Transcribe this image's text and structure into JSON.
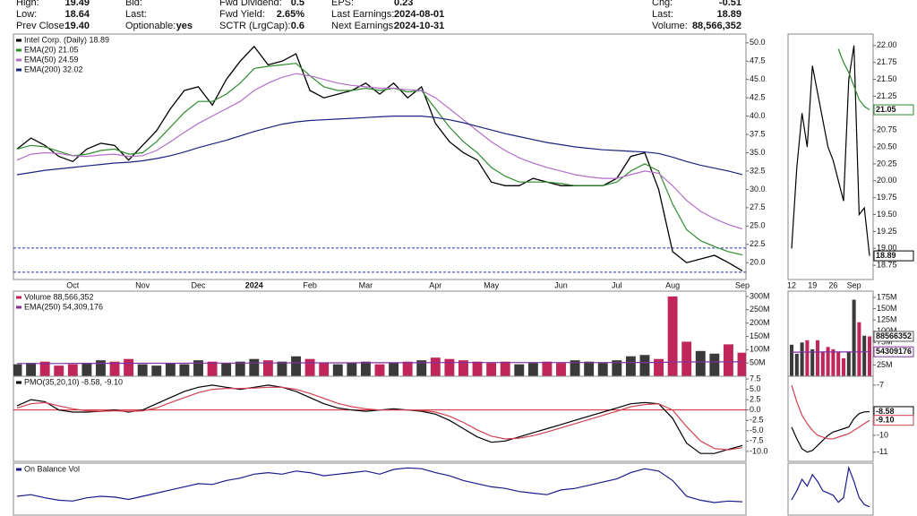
{
  "header": {
    "rows": [
      [
        {
          "label": "High:",
          "value": "19.49"
        },
        {
          "label": "Bid:"
        },
        {
          "label": "Fwd Dividend:",
          "value": "0.5"
        },
        {
          "label": "EPS:",
          "value": "0.23"
        },
        {
          "label": "Chg:",
          "value": "-0.51"
        }
      ],
      [
        {
          "label": "Low:",
          "value": "18.64"
        },
        {
          "label": "Last:"
        },
        {
          "label": "Fwd Yield:",
          "value": "2.65%"
        },
        {
          "label": "Last Earnings:",
          "value": "2024-08-01"
        },
        {
          "label": "Last:",
          "value": "18.89"
        }
      ],
      [
        {
          "label": "Prev Close:",
          "value": "19.40"
        },
        {
          "label": "Optionable:",
          "value": "yes"
        },
        {
          "label": "SCTR (LrgCap):",
          "value": "0.6"
        },
        {
          "label": "Next Earnings:",
          "value": "2024-10-31"
        },
        {
          "label": "Volume:",
          "value": "88,566,352"
        }
      ]
    ]
  },
  "chart_data": [
    {
      "type": "line",
      "categories": [
        null,
        null,
        null,
        null,
        "Oct",
        null,
        null,
        null,
        null,
        "Nov",
        null,
        null,
        null,
        "Dec",
        null,
        null,
        null,
        "2024",
        null,
        null,
        null,
        "Feb",
        null,
        null,
        null,
        "Mar",
        null,
        null,
        null,
        null,
        "Apr",
        null,
        null,
        null,
        "May",
        null,
        null,
        null,
        null,
        "Jun",
        null,
        null,
        null,
        "Jul",
        null,
        null,
        null,
        "Aug",
        null,
        null,
        null,
        null,
        "Sep"
      ],
      "ylim": [
        17.7,
        51.2
      ],
      "yticks": [
        {
          "value": 50,
          "label": "50.0"
        },
        47.5,
        {
          "value": 45,
          "label": "45.0"
        },
        42.5,
        {
          "value": 40,
          "label": "40.0"
        },
        37.5,
        {
          "value": 35,
          "label": "35.0"
        },
        32.5,
        {
          "value": 30,
          "label": "30.0"
        },
        27.5,
        {
          "value": 25,
          "label": "25.0"
        },
        22.5,
        {
          "value": 20,
          "label": "20.0"
        }
      ],
      "hlines": [
        22.0,
        18.7
      ],
      "hline_color": "#2233aa",
      "hline_dash": true,
      "series": [
        {
          "name": "Intel Corp. (Daily) 18.89",
          "color": "#000000",
          "values": [
            35.5,
            37.0,
            36.0,
            34.5,
            33.8,
            35.5,
            36.3,
            36.0,
            34.0,
            36.0,
            38.0,
            41.0,
            43.5,
            44.0,
            41.5,
            45.0,
            47.5,
            49.5,
            47.0,
            47.5,
            48.5,
            43.5,
            42.5,
            43.0,
            43.5,
            44.5,
            43.0,
            44.5,
            42.5,
            44.0,
            39.0,
            36.5,
            35.0,
            34.0,
            31.0,
            30.5,
            30.5,
            31.5,
            31.0,
            30.5,
            30.5,
            30.5,
            30.5,
            31.5,
            34.5,
            35.0,
            30.0,
            21.5,
            20.0,
            20.5,
            21.0,
            20.0,
            18.89
          ]
        },
        {
          "name": "EMA(20) 21.05",
          "color": "#2e8b2e",
          "values": [
            35.5,
            36,
            35.8,
            35.2,
            34.6,
            34.8,
            35.3,
            35.5,
            34.8,
            35,
            36.5,
            38.5,
            40.5,
            42,
            42,
            43,
            44.5,
            46.5,
            46.8,
            47,
            47.2,
            45.5,
            44,
            43.5,
            43.5,
            43.8,
            43.5,
            43.8,
            43.3,
            43.5,
            41,
            38.5,
            36.5,
            35,
            33,
            31.8,
            31,
            31,
            31,
            30.8,
            30.5,
            30.5,
            30.5,
            31,
            32.5,
            33.5,
            32.5,
            28,
            24.5,
            23,
            22.2,
            21.5,
            21.05
          ]
        },
        {
          "name": "EMA(50) 24.59",
          "color": "#b46ec8",
          "values": [
            34,
            34.8,
            35,
            34.9,
            34.6,
            34.5,
            34.7,
            34.8,
            34.5,
            34.6,
            35.3,
            36.5,
            37.8,
            39,
            40,
            41,
            42,
            43.5,
            44.5,
            45.3,
            45.8,
            45.5,
            45,
            44.5,
            44.2,
            44,
            43.8,
            43.8,
            43.6,
            43.5,
            42.5,
            41,
            39.5,
            38,
            36.5,
            35.3,
            34.3,
            33.6,
            33,
            32.5,
            32,
            31.7,
            31.5,
            31.5,
            32,
            32.5,
            32.2,
            30.5,
            28.5,
            27,
            26,
            25.2,
            24.59
          ]
        },
        {
          "name": "EMA(200) 32.02",
          "color": "#1a237e",
          "values": [
            32,
            32.3,
            32.6,
            32.8,
            33,
            33.2,
            33.4,
            33.6,
            33.7,
            33.9,
            34.2,
            34.6,
            35.1,
            35.7,
            36.2,
            36.7,
            37.3,
            37.9,
            38.4,
            38.9,
            39.2,
            39.4,
            39.5,
            39.6,
            39.7,
            39.8,
            39.9,
            40,
            40,
            40,
            39.8,
            39.5,
            39.1,
            38.6,
            38.1,
            37.6,
            37.2,
            36.8,
            36.4,
            36.1,
            35.8,
            35.6,
            35.4,
            35.3,
            35.2,
            35.1,
            34.9,
            34.4,
            33.8,
            33.3,
            32.9,
            32.5,
            32.02
          ]
        }
      ]
    },
    {
      "type": "bar",
      "ylim": [
        0,
        320000000
      ],
      "yticks": [
        {
          "value": 300000000,
          "label": "300M"
        },
        {
          "value": 250000000,
          "label": "250M"
        },
        {
          "value": 200000000,
          "label": "200M"
        },
        {
          "value": 150000000,
          "label": "150M"
        },
        {
          "value": 100000000,
          "label": "100M"
        },
        {
          "value": 50000000,
          "label": "50M"
        }
      ],
      "series": [
        {
          "name": "Volume 88,566,352",
          "kind": "bar",
          "up_color": "#3a3a3a",
          "down_color": "#c0265a",
          "values": [
            45000000,
            50000000,
            55000000,
            40000000,
            45000000,
            50000000,
            60000000,
            55000000,
            65000000,
            45000000,
            40000000,
            50000000,
            45000000,
            60000000,
            55000000,
            50000000,
            55000000,
            65000000,
            60000000,
            55000000,
            75000000,
            65000000,
            50000000,
            45000000,
            50000000,
            55000000,
            45000000,
            50000000,
            55000000,
            60000000,
            70000000,
            65000000,
            60000000,
            55000000,
            50000000,
            55000000,
            45000000,
            50000000,
            55000000,
            50000000,
            60000000,
            55000000,
            50000000,
            60000000,
            75000000,
            80000000,
            65000000,
            300000000,
            130000000,
            95000000,
            85000000,
            120000000,
            88566352
          ]
        },
        {
          "name": "EMA(250) 54,309,176",
          "color": "#8030a0",
          "values": [
            48000000,
            48000000,
            48000000,
            48000000,
            48500000,
            48500000,
            48500000,
            49000000,
            49000000,
            49000000,
            49000000,
            49000000,
            49000000,
            49500000,
            49500000,
            49500000,
            49500000,
            50000000,
            50000000,
            50000000,
            50500000,
            50500000,
            50500000,
            50500000,
            50500000,
            51000000,
            51000000,
            51000000,
            51000000,
            51000000,
            51500000,
            51500000,
            51500000,
            51500000,
            51500000,
            51500000,
            51500000,
            51500000,
            51500000,
            51500000,
            51500000,
            51500000,
            51500000,
            51500000,
            52000000,
            52000000,
            52000000,
            53500000,
            54000000,
            54000000,
            54200000,
            54300000,
            54309176
          ]
        }
      ]
    },
    {
      "type": "line",
      "ylim": [
        -12.4,
        8.15
      ],
      "yticks": [
        7.5,
        {
          "value": 5,
          "label": "5.0"
        },
        2.5,
        {
          "value": 0,
          "label": "0.0"
        },
        -2.5,
        {
          "value": -5,
          "label": "-5.0"
        },
        -7.5,
        {
          "value": -10,
          "label": "-10.0"
        }
      ],
      "hlines": [
        0
      ],
      "hline_color": "#d02020",
      "series": [
        {
          "name": "PMO(35,20,10) -8.58, -9.10",
          "color": "#000000",
          "values": [
            1,
            2.5,
            2,
            0,
            -0.5,
            -0.5,
            -0.3,
            0,
            -0.5,
            0,
            1.5,
            3,
            4.5,
            5.5,
            6,
            5.5,
            5,
            5.5,
            6,
            5.5,
            4.5,
            3,
            1.5,
            0.5,
            0,
            -0.3,
            0,
            0.3,
            0,
            -0.3,
            -1,
            -2.5,
            -4.5,
            -6.5,
            -7.8,
            -7.5,
            -6.5,
            -5.5,
            -4.5,
            -3.5,
            -2.5,
            -1.5,
            -0.5,
            0.5,
            1.5,
            1.8,
            1.5,
            -2,
            -8,
            -10.5,
            -10.5,
            -9.5,
            -8.58
          ]
        },
        {
          "color": "#d04050",
          "values": [
            0.5,
            1.5,
            1.8,
            1,
            0.3,
            -0.2,
            -0.3,
            -0.2,
            -0.3,
            -0.2,
            0.5,
            1.8,
            3,
            4.2,
            5,
            5.2,
            5.2,
            5.3,
            5.5,
            5.5,
            5,
            4,
            2.8,
            1.6,
            0.8,
            0.3,
            0,
            0,
            0,
            -0.1,
            -0.5,
            -1.5,
            -3,
            -4.8,
            -6.3,
            -7,
            -6.8,
            -6.2,
            -5.3,
            -4.3,
            -3.3,
            -2.3,
            -1.3,
            -0.3,
            0.8,
            1.3,
            1.5,
            0,
            -4,
            -7.5,
            -9.3,
            -9.6,
            -9.1
          ]
        }
      ]
    },
    {
      "type": "line",
      "ylim": [
        -15,
        52
      ],
      "series": [
        {
          "name": "On Balance Vol",
          "color": "#1a1a8c",
          "values": [
            10,
            12,
            8,
            5,
            4,
            8,
            10,
            9,
            6,
            10,
            14,
            18,
            22,
            26,
            25,
            30,
            33,
            38,
            40,
            38,
            42,
            40,
            36,
            38,
            40,
            42,
            38,
            44,
            46,
            45,
            40,
            36,
            30,
            26,
            22,
            20,
            16,
            14,
            12,
            18,
            20,
            24,
            28,
            32,
            40,
            45,
            42,
            30,
            10,
            5,
            2,
            4,
            3
          ]
        }
      ]
    },
    {
      "type": "line",
      "categories": [
        "12",
        null,
        null,
        null,
        "19",
        null,
        null,
        null,
        "26",
        null,
        null,
        null,
        "Sep",
        null,
        null,
        null
      ],
      "ylim": [
        18.54,
        22.17
      ],
      "yticks": [
        {
          "value": 22,
          "label": "22.00"
        },
        21.75,
        {
          "value": 21.5,
          "label": "21.50"
        },
        21.25,
        {
          "value": 21,
          "label": "21.00"
        },
        20.75,
        {
          "value": 20.5,
          "label": "20.50"
        },
        20.25,
        {
          "value": 20,
          "label": "20.00"
        },
        19.75,
        {
          "value": 19.5,
          "label": "19.50"
        },
        19.25,
        {
          "value": 19,
          "label": "19.00"
        },
        18.75
      ],
      "series": [
        {
          "color": "#000000",
          "end_label": true,
          "values": [
            19.0,
            20.2,
            21.0,
            20.5,
            21.7,
            21.3,
            20.9,
            20.5,
            20.3,
            20.0,
            19.7,
            21.5,
            22.0,
            19.5,
            19.6,
            18.89
          ]
        },
        {
          "color": "#2e8b2e",
          "end_label": true,
          "values": [
            null,
            null,
            null,
            null,
            null,
            null,
            null,
            null,
            null,
            21.95,
            21.75,
            21.6,
            21.4,
            21.2,
            21.1,
            21.05
          ]
        }
      ]
    },
    {
      "type": "bar",
      "ylim": [
        0,
        189000000
      ],
      "yticks": [
        {
          "value": 175000000,
          "label": "175M"
        },
        {
          "value": 150000000,
          "label": "150M"
        },
        {
          "value": 125000000,
          "label": "125M"
        },
        {
          "value": 100000000,
          "label": "100M"
        },
        {
          "value": 75000000,
          "label": "75M"
        },
        {
          "value": 25000000,
          "label": "25M"
        }
      ],
      "series": [
        {
          "kind": "bar",
          "up_color": "#3a3a3a",
          "down_color": "#c0265a",
          "end_label": true,
          "values": [
            70000000,
            50000000,
            75000000,
            80000000,
            60000000,
            80000000,
            55000000,
            65000000,
            60000000,
            55000000,
            40000000,
            55000000,
            170000000,
            120000000,
            90000000,
            88566352
          ]
        },
        {
          "color": "#8030a0",
          "end_label": true,
          "values": [
            53600000,
            53600000,
            53700000,
            53700000,
            53800000,
            53800000,
            53900000,
            53900000,
            53900000,
            54000000,
            54000000,
            54000000,
            54200000,
            54200000,
            54300000,
            54309176
          ]
        }
      ]
    },
    {
      "type": "line",
      "ylim": [
        -11.55,
        -6.47
      ],
      "yticks": [
        -7,
        -10,
        -11
      ],
      "series": [
        {
          "color": "#000000",
          "end_label": true,
          "values": [
            -9.5,
            -10.2,
            -10.8,
            -11,
            -10.9,
            -10.6,
            -10.3,
            -10.0,
            -9.8,
            -9.7,
            -9.6,
            -9.5,
            -9.0,
            -8.7,
            -8.6,
            -8.58
          ]
        },
        {
          "color": "#d04050",
          "end_label": true,
          "values": [
            -7,
            -8,
            -8.8,
            -9.3,
            -9.7,
            -10,
            -10.1,
            -10.2,
            -10.2,
            -10.1,
            -10,
            -9.9,
            -9.7,
            -9.5,
            -9.3,
            -9.1
          ],
          "value_labels": [
            null,
            null,
            null,
            null,
            null,
            null,
            null,
            null,
            null,
            null,
            null,
            null,
            null,
            null,
            null,
            "-9.10"
          ]
        }
      ]
    },
    {
      "type": "line",
      "ylim": [
        -15,
        100
      ],
      "series": [
        {
          "color": "#1a1a8c",
          "values": [
            20,
            40,
            65,
            50,
            75,
            60,
            40,
            35,
            30,
            15,
            25,
            90,
            60,
            25,
            10,
            5
          ]
        }
      ]
    }
  ]
}
